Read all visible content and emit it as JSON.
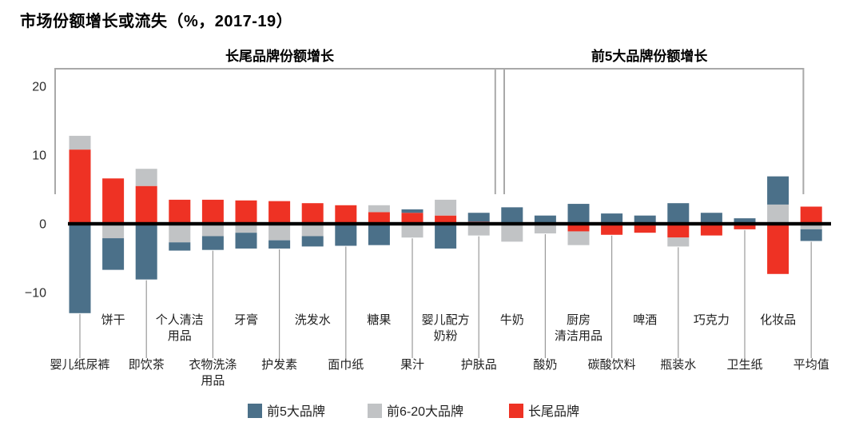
{
  "title": "市场份额增长或流失（%，2017-19）",
  "chart_data": {
    "type": "bar",
    "stacked": true,
    "unit": "%",
    "y_ticks": [
      20,
      10,
      0,
      -10
    ],
    "ylim": [
      -15,
      21
    ],
    "zero_line": true,
    "grid": false,
    "legend_position": "bottom",
    "series_stack_order_from_axis": [
      "长尾品牌",
      "前6-20大品牌",
      "前5大品牌"
    ],
    "categories": [
      "婴儿纸尿裤",
      "饼干",
      "即饮茶",
      "个人清洁用品",
      "衣物洗涤用品",
      "牙膏",
      "护发素",
      "洗发水",
      "面巾纸",
      "糖果",
      "果汁",
      "婴儿配方奶粉",
      "护肤品",
      "牛奶",
      "酸奶",
      "厨房清洁用品",
      "碳酸饮料",
      "啤酒",
      "瓶装水",
      "巧克力",
      "卫生纸",
      "化妆品",
      "平均值"
    ],
    "category_label_lines": [
      [
        "婴儿纸尿裤"
      ],
      [
        "饼干"
      ],
      [
        "即饮茶"
      ],
      [
        "个人清洁",
        "用品"
      ],
      [
        "衣物洗涤",
        "用品"
      ],
      [
        "牙膏"
      ],
      [
        "护发素"
      ],
      [
        "洗发水"
      ],
      [
        "面巾纸"
      ],
      [
        "糖果"
      ],
      [
        "果汁"
      ],
      [
        "婴儿配方",
        "奶粉"
      ],
      [
        "护肤品"
      ],
      [
        "牛奶"
      ],
      [
        "酸奶"
      ],
      [
        "厨房",
        "清洁用品"
      ],
      [
        "碳酸饮料"
      ],
      [
        "啤酒"
      ],
      [
        "瓶装水"
      ],
      [
        "巧克力"
      ],
      [
        "卫生纸"
      ],
      [
        "化妆品"
      ],
      [
        "平均值"
      ]
    ],
    "series": [
      {
        "name": "前5大品牌",
        "color": "#4b7089",
        "values": [
          -13.0,
          -4.6,
          -8.1,
          -1.2,
          -2.0,
          -2.3,
          -1.2,
          -1.5,
          -3.2,
          -3.1,
          0.5,
          -3.6,
          1.3,
          2.4,
          1.2,
          2.9,
          1.5,
          1.2,
          3.0,
          1.6,
          0.8,
          4.1,
          -1.7
        ]
      },
      {
        "name": "前6-20大品牌",
        "color": "#c1c3c5",
        "values": [
          2.0,
          -2.1,
          2.5,
          -2.7,
          -1.8,
          -1.3,
          -2.4,
          -1.8,
          0,
          1.0,
          -2.0,
          2.3,
          -1.7,
          -2.6,
          -1.4,
          -2.0,
          0,
          0,
          -1.3,
          0,
          0,
          2.8,
          -0.8
        ]
      },
      {
        "name": "长尾品牌",
        "color": "#ee3224",
        "values": [
          10.8,
          6.6,
          5.5,
          3.5,
          3.5,
          3.4,
          3.3,
          3.0,
          2.7,
          1.7,
          1.6,
          1.2,
          0.3,
          0,
          0,
          -1.1,
          -1.6,
          -1.3,
          -2.0,
          -1.7,
          -0.8,
          -7.3,
          2.5
        ]
      }
    ],
    "group_brackets": [
      {
        "label": "长尾品牌份额增长",
        "from": 0,
        "to": 12
      },
      {
        "label": "前5大品牌份额增长",
        "from": 13,
        "to": 21
      }
    ],
    "legend": [
      {
        "label": "前5大品牌",
        "color": "#4b7089"
      },
      {
        "label": "前6-20大品牌",
        "color": "#c1c3c5"
      },
      {
        "label": "长尾品牌",
        "color": "#ee3224"
      }
    ]
  }
}
